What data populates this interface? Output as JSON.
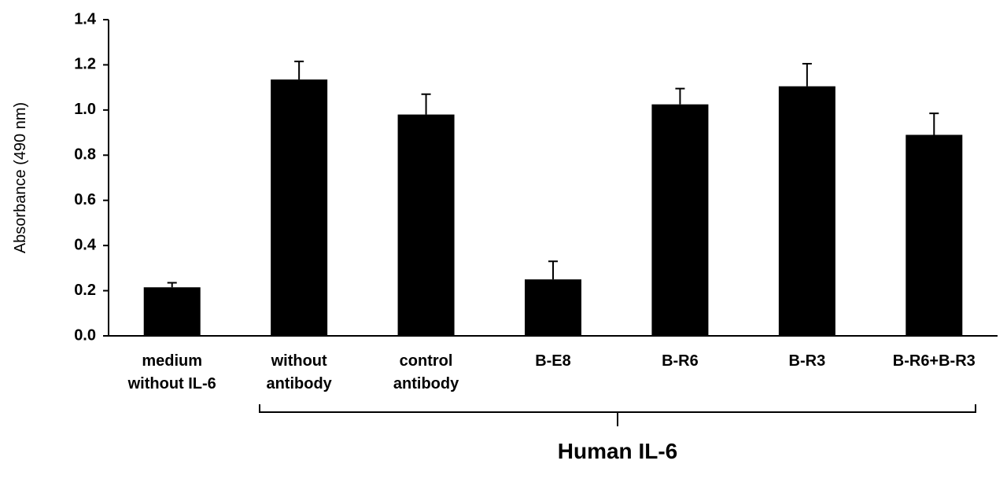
{
  "chart_data": {
    "type": "bar",
    "y_label": "Absorbance (490 nm)",
    "annotation": "Human IL-6",
    "categories": [
      "medium\nwithout IL-6",
      "without\nantibody",
      "control\nantibody",
      "B-E8",
      "B-R6",
      "B-R3",
      "B-R6+B-R3"
    ],
    "values": [
      0.215,
      1.135,
      0.98,
      0.25,
      1.025,
      1.105,
      0.89
    ],
    "errors": [
      0.02,
      0.08,
      0.09,
      0.08,
      0.07,
      0.1,
      0.095
    ],
    "color": "#000000",
    "ylim": [
      0,
      1.4
    ],
    "yticks": [
      {
        "value": 0,
        "label": "0.0"
      },
      0.2,
      0.4,
      0.6,
      0.8,
      {
        "value": 1,
        "label": "1.0"
      },
      1.2,
      1.4
    ],
    "grid": false
  }
}
